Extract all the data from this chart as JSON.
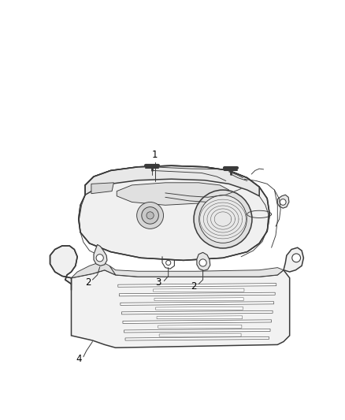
{
  "background_color": "#ffffff",
  "line_color": "#3a3a3a",
  "label_color": "#000000",
  "fig_width": 4.38,
  "fig_height": 5.33,
  "dpi": 100,
  "lw_main": 1.1,
  "lw_thin": 0.65,
  "lw_thick": 1.6
}
